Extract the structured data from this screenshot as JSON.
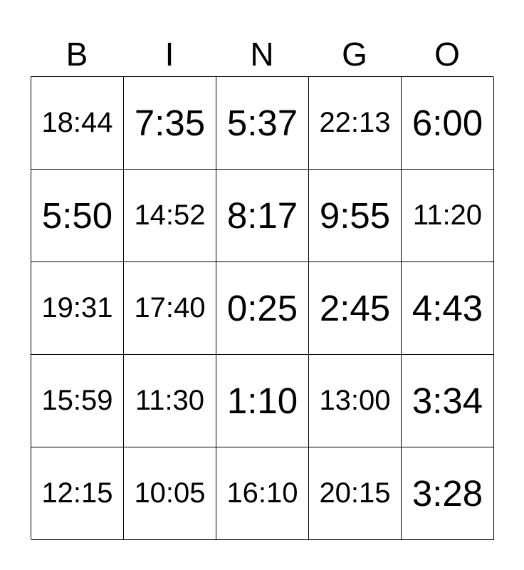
{
  "header": [
    "B",
    "I",
    "N",
    "G",
    "O"
  ],
  "rows": [
    [
      "18:44",
      "7:35",
      "5:37",
      "22:13",
      "6:00"
    ],
    [
      "5:50",
      "14:52",
      "8:17",
      "9:55",
      "11:20"
    ],
    [
      "19:31",
      "17:40",
      "0:25",
      "2:45",
      "4:43"
    ],
    [
      "15:59",
      "11:30",
      "1:10",
      "13:00",
      "3:34"
    ],
    [
      "12:15",
      "10:05",
      "16:10",
      "20:15",
      "3:28"
    ]
  ]
}
